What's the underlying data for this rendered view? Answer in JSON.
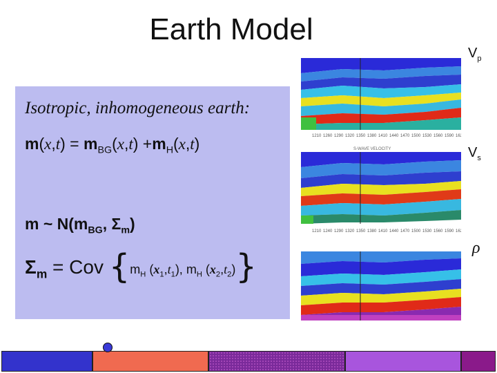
{
  "title": "Earth Model",
  "panel": {
    "heading": "Isotropic, inhomogeneous earth:",
    "eq1": {
      "m": "m",
      "open": "(",
      "x": "x",
      "comma": ",",
      "t": "t",
      "close": ")",
      "eq": " = ",
      "mbg": "m",
      "bg": "BG",
      "plus": " +",
      "mh": "m",
      "h": "H"
    },
    "eq2": {
      "lhs": "m ~ N(m",
      "bg": "BG",
      "sep": ", Σ",
      "m": "m",
      "close": ")"
    },
    "eq3": {
      "sigma": "Σ",
      "m": "m",
      "eq": " = Cov ",
      "mh1": "m",
      "h1": "H",
      "x1": "x",
      "s1": "1",
      "t1": "t",
      "st1": "1",
      "mh2": "m",
      "h2": "H",
      "x2": "x",
      "s2": "2",
      "t2": "t",
      "st2": "2"
    }
  },
  "labels": {
    "vp": "V",
    "vp_sub": "p",
    "vs": "V",
    "vs_sub": "s",
    "rho": "ρ"
  },
  "images": {
    "vp_axis": [
      "1210",
      "1260",
      "1290",
      "1320",
      "1350",
      "1380",
      "1410",
      "1440",
      "1470",
      "1500",
      "1530",
      "1560",
      "1590",
      "1620"
    ],
    "vs_caption": "S-WAVE VELOCITY",
    "vs_axis": [
      "1210",
      "1240",
      "1290",
      "1320",
      "1350",
      "1380",
      "1410",
      "1440",
      "1470",
      "1500",
      "1530",
      "1560",
      "1590",
      "1620"
    ]
  },
  "colors": {
    "panel_bg": "#bcbcf0",
    "bar1": "#3333cc",
    "bar2": "#f06a50",
    "bar3": "#7a2a9a",
    "bar4": "#a855dd",
    "bar5": "#8a1a8a"
  }
}
